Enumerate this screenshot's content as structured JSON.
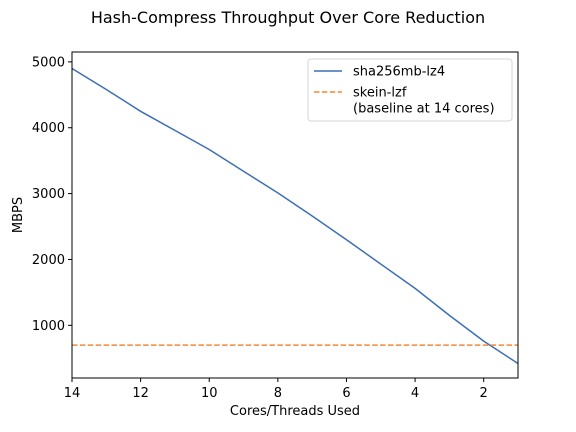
{
  "chart_data": {
    "type": "line",
    "title": "Hash-Compress Throughput Over Core Reduction",
    "xlabel": "Cores/Threads Used",
    "ylabel": "MBPS",
    "xlim": [
      14,
      1
    ],
    "ylim": [
      200,
      5150
    ],
    "x_inverted": true,
    "xticks": [
      14,
      12,
      10,
      8,
      6,
      4,
      2
    ],
    "yticks": [
      1000,
      2000,
      3000,
      4000,
      5000
    ],
    "grid": false,
    "legend_position": "top-right",
    "series": [
      {
        "name": "sha256mb-lz4",
        "style": "solid",
        "color": "#3d6fb6",
        "x": [
          14,
          13,
          12,
          11,
          10,
          9,
          8,
          7,
          6,
          5,
          4,
          3,
          2,
          1
        ],
        "y": [
          4900,
          4580,
          4250,
          3960,
          3670,
          3340,
          3010,
          2660,
          2300,
          1930,
          1560,
          1150,
          760,
          420
        ]
      },
      {
        "name": "skein-lzf\n(baseline at 14 cores)",
        "style": "dashed",
        "color": "#ee8a3a",
        "x": [
          14,
          1
        ],
        "y": [
          700,
          700
        ]
      }
    ]
  }
}
